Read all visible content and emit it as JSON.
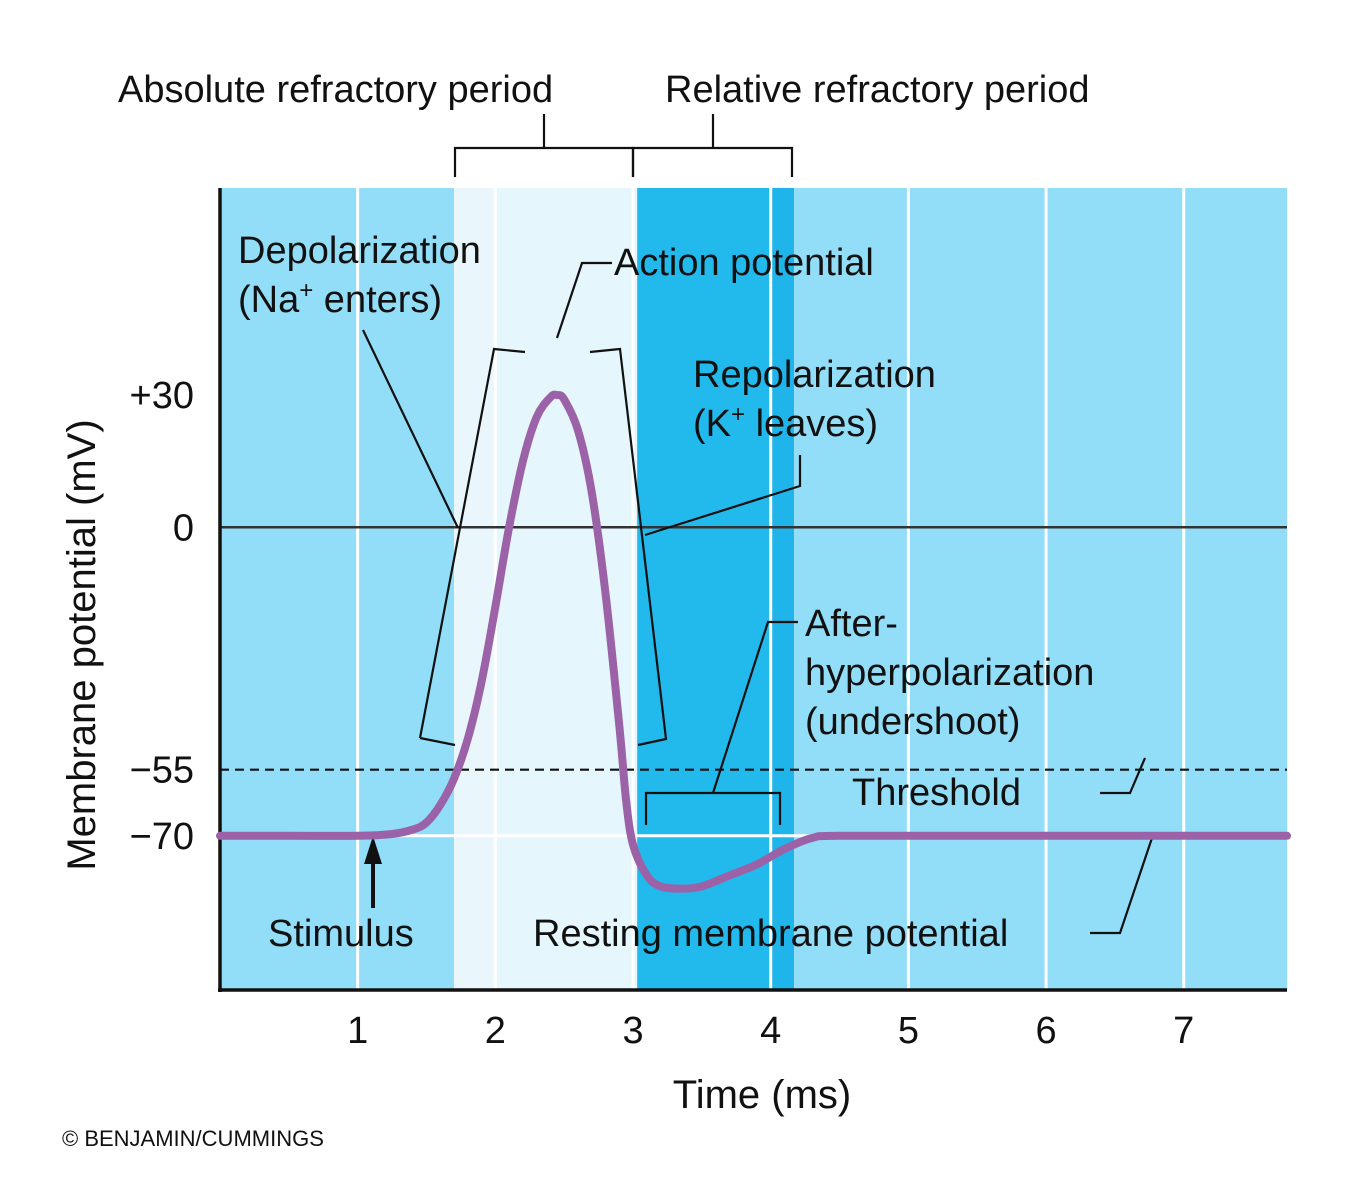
{
  "chart_data": {
    "type": "line",
    "xlabel": "Time (ms)",
    "ylabel": "Membrane potential (mV)",
    "x_ticks": [
      "1",
      "2",
      "3",
      "4",
      "5",
      "6",
      "7"
    ],
    "y_ticks": [
      {
        "value": 30,
        "label": "+30"
      },
      {
        "value": 0,
        "label": "0"
      },
      {
        "value": -55,
        "label": "−55"
      },
      {
        "value": -70,
        "label": "−70"
      }
    ],
    "xlim": [
      0,
      7.75
    ],
    "ylim": [
      -105,
      77
    ],
    "grid": true,
    "threshold": -55,
    "resting": -70,
    "series": [
      {
        "color": "#9b62a8",
        "points": [
          [
            0,
            -70
          ],
          [
            0.5,
            -70
          ],
          [
            1.0,
            -70
          ],
          [
            1.25,
            -69.6
          ],
          [
            1.4,
            -68.6
          ],
          [
            1.5,
            -67
          ],
          [
            1.6,
            -63
          ],
          [
            1.7,
            -57
          ],
          [
            1.8,
            -48
          ],
          [
            1.9,
            -35
          ],
          [
            2.0,
            -18
          ],
          [
            2.1,
            0
          ],
          [
            2.2,
            15
          ],
          [
            2.3,
            25
          ],
          [
            2.4,
            29.5
          ],
          [
            2.45,
            30
          ],
          [
            2.5,
            29
          ],
          [
            2.6,
            22
          ],
          [
            2.7,
            8
          ],
          [
            2.8,
            -15
          ],
          [
            2.9,
            -45
          ],
          [
            2.95,
            -62
          ],
          [
            3.0,
            -72
          ],
          [
            3.1,
            -79
          ],
          [
            3.2,
            -81.5
          ],
          [
            3.35,
            -82
          ],
          [
            3.5,
            -81.5
          ],
          [
            3.7,
            -79
          ],
          [
            3.9,
            -76.5
          ],
          [
            4.1,
            -73
          ],
          [
            4.3,
            -70.5
          ],
          [
            4.5,
            -70
          ],
          [
            5.5,
            -70
          ],
          [
            6.5,
            -70
          ],
          [
            7.75,
            -70
          ]
        ]
      }
    ],
    "bands": [
      {
        "x0": 0,
        "x1": 1.7,
        "color": "#92ddf7"
      },
      {
        "x0": 1.7,
        "x1": 1.98,
        "color": "#e9f7fd"
      },
      {
        "x0": 1.98,
        "x1": 3.03,
        "color": "#e6f6fd"
      },
      {
        "x0": 3.03,
        "x1": 4.0,
        "color": "#22baec"
      },
      {
        "x0": 4.0,
        "x1": 4.17,
        "color": "#1fb5eb"
      },
      {
        "x0": 4.17,
        "x1": 7.75,
        "color": "#92ddf7"
      }
    ],
    "annotations": {
      "absolute_refractory": "Absolute refractory period",
      "relative_refractory": "Relative refractory period",
      "depolarization_line1": "Depolarization",
      "depolarization_line2_pre": "(Na",
      "depolarization_line2_sup": "+",
      "depolarization_line2_post": " enters)",
      "action_potential": "Action potential",
      "repolarization_line1": "Repolarization",
      "repolarization_line2_pre": "(K",
      "repolarization_line2_sup": "+",
      "repolarization_line2_post": " leaves)",
      "after_line1": "After-",
      "after_line2": "hyperpolarization",
      "after_line3": "(undershoot)",
      "threshold": "Threshold",
      "stimulus": "Stimulus",
      "resting": "Resting membrane potential"
    },
    "credit": "© BENJAMIN/CUMMINGS"
  }
}
